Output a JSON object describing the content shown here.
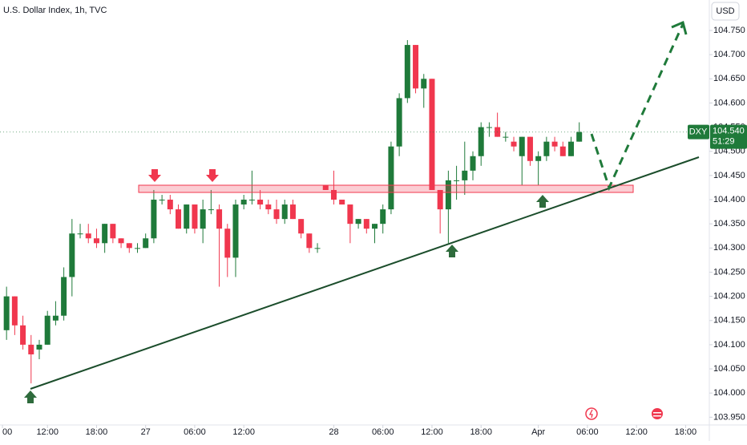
{
  "chart_data": {
    "type": "candlestick",
    "title": "U.S. Dollar Index, 1h, TVC",
    "currency": "USD",
    "up_color": "#1f7a3a",
    "down_color": "#f0374e",
    "x": [
      0,
      1,
      2,
      3,
      4,
      5,
      6,
      7,
      8,
      9,
      10,
      11,
      12,
      13,
      14,
      15,
      16,
      17,
      18,
      19,
      20,
      21,
      22,
      23,
      24,
      25,
      26,
      27,
      28,
      29,
      30,
      31,
      32,
      33,
      34,
      35,
      36,
      37,
      38,
      39,
      40,
      41,
      42,
      43,
      44,
      45,
      46,
      47,
      48,
      49,
      50,
      51,
      52,
      53,
      54,
      55,
      56,
      57,
      58,
      59,
      60,
      61,
      62,
      63,
      64,
      65,
      66,
      67,
      68,
      69,
      70
    ],
    "open": [
      104.13,
      104.2,
      104.14,
      104.1,
      104.09,
      104.1,
      104.15,
      104.16,
      104.24,
      104.33,
      104.33,
      104.32,
      104.31,
      104.35,
      104.32,
      104.31,
      104.3,
      104.3,
      104.32,
      104.4,
      104.4,
      104.38,
      104.34,
      104.39,
      104.34,
      104.38,
      104.38,
      104.34,
      104.28,
      104.39,
      104.4,
      104.4,
      104.39,
      104.38,
      104.36,
      104.39,
      104.36,
      104.33,
      104.3,
      104.43,
      104.42,
      104.4,
      104.39,
      104.35,
      104.36,
      104.34,
      104.35,
      104.38,
      104.51,
      104.61,
      104.72,
      104.63,
      104.65,
      104.42,
      104.38,
      104.44,
      104.44,
      104.46,
      104.49,
      104.55,
      104.55,
      104.53,
      104.52,
      104.49,
      104.53,
      104.48,
      104.49,
      104.52,
      104.51,
      104.49,
      104.52
    ],
    "high": [
      104.22,
      104.2,
      104.16,
      104.12,
      104.11,
      104.17,
      104.19,
      104.26,
      104.36,
      104.35,
      104.35,
      104.34,
      104.35,
      104.35,
      104.32,
      104.31,
      104.31,
      104.33,
      104.42,
      104.41,
      104.41,
      104.39,
      104.39,
      104.39,
      104.4,
      104.42,
      104.39,
      104.35,
      104.4,
      104.41,
      104.46,
      104.42,
      104.4,
      104.4,
      104.4,
      104.4,
      104.36,
      104.33,
      104.31,
      104.43,
      104.46,
      104.4,
      104.39,
      104.36,
      104.36,
      104.35,
      104.39,
      104.52,
      104.62,
      104.73,
      104.72,
      104.66,
      104.65,
      104.42,
      104.46,
      104.47,
      104.52,
      104.5,
      104.56,
      104.56,
      104.58,
      104.54,
      104.53,
      104.53,
      104.53,
      104.5,
      104.53,
      104.53,
      104.52,
      104.53,
      104.56
    ],
    "low": [
      104.11,
      104.12,
      104.09,
      104.02,
      104.07,
      104.1,
      104.14,
      104.15,
      104.2,
      104.32,
      104.31,
      104.3,
      104.29,
      104.31,
      104.3,
      104.29,
      104.29,
      104.3,
      104.31,
      104.39,
      104.37,
      104.34,
      104.33,
      104.33,
      104.31,
      104.37,
      104.22,
      104.24,
      104.24,
      104.38,
      104.39,
      104.38,
      104.37,
      104.35,
      104.35,
      104.36,
      104.32,
      104.29,
      104.29,
      104.42,
      104.39,
      104.39,
      104.31,
      104.34,
      104.33,
      104.31,
      104.33,
      104.37,
      104.49,
      104.6,
      104.62,
      104.59,
      104.42,
      104.33,
      104.31,
      104.4,
      104.41,
      104.44,
      104.47,
      104.53,
      104.53,
      104.52,
      104.5,
      104.43,
      104.47,
      104.43,
      104.48,
      104.5,
      104.49,
      104.49,
      104.52
    ],
    "close": [
      104.2,
      104.14,
      104.1,
      104.08,
      104.1,
      104.16,
      104.16,
      104.24,
      104.33,
      104.33,
      104.32,
      104.31,
      104.35,
      104.32,
      104.31,
      104.3,
      104.3,
      104.32,
      104.4,
      104.4,
      104.38,
      104.34,
      104.39,
      104.34,
      104.38,
      104.38,
      104.34,
      104.28,
      104.39,
      104.4,
      104.4,
      104.39,
      104.38,
      104.36,
      104.39,
      104.36,
      104.33,
      104.3,
      104.3,
      104.42,
      104.4,
      104.39,
      104.35,
      104.36,
      104.34,
      104.35,
      104.38,
      104.51,
      104.61,
      104.72,
      104.63,
      104.65,
      104.42,
      104.38,
      104.44,
      104.44,
      104.46,
      104.49,
      104.55,
      104.55,
      104.53,
      104.53,
      104.51,
      104.53,
      104.48,
      104.49,
      104.52,
      104.51,
      104.49,
      104.52,
      104.54
    ],
    "xlim": [
      -0.8,
      85.9
    ],
    "xticks": [
      {
        "value": -0.5,
        "label": "00"
      },
      {
        "value": 5,
        "label": "12:00"
      },
      {
        "value": 11,
        "label": "18:00"
      },
      {
        "value": 17,
        "label": "27"
      },
      {
        "value": 23,
        "label": "06:00"
      },
      {
        "value": 29,
        "label": "12:00"
      },
      {
        "value": 40,
        "label": "28"
      },
      {
        "value": 46,
        "label": "06:00"
      },
      {
        "value": 52,
        "label": "12:00"
      },
      {
        "value": 58,
        "label": "18:00"
      },
      {
        "value": 65,
        "label": "Apr"
      },
      {
        "value": 71,
        "label": "06:00"
      },
      {
        "value": 77,
        "label": "12:00"
      },
      {
        "value": 83,
        "label": "18:00"
      }
    ],
    "ylim": [
      103.934,
      104.813
    ],
    "yticks": [
      {
        "value": 103.95,
        "label": "103.950"
      },
      {
        "value": 104.0,
        "label": "104.000"
      },
      {
        "value": 104.05,
        "label": "104.050"
      },
      {
        "value": 104.1,
        "label": "104.100"
      },
      {
        "value": 104.15,
        "label": "104.150"
      },
      {
        "value": 104.2,
        "label": "104.200"
      },
      {
        "value": 104.25,
        "label": "104.250"
      },
      {
        "value": 104.3,
        "label": "104.300"
      },
      {
        "value": 104.35,
        "label": "104.350"
      },
      {
        "value": 104.4,
        "label": "104.400"
      },
      {
        "value": 104.45,
        "label": "104.450"
      },
      {
        "value": 104.5,
        "label": "104.500"
      },
      {
        "value": 104.55,
        "label": "104.550"
      },
      {
        "value": 104.6,
        "label": "104.600"
      },
      {
        "value": 104.65,
        "label": "104.650"
      },
      {
        "value": 104.7,
        "label": "104.700"
      },
      {
        "value": 104.75,
        "label": "104.750"
      }
    ],
    "last_price": {
      "symbol": "DXY",
      "price": {
        "value": 104.54,
        "label": "104.540"
      },
      "countdown": "51:29"
    }
  }
}
